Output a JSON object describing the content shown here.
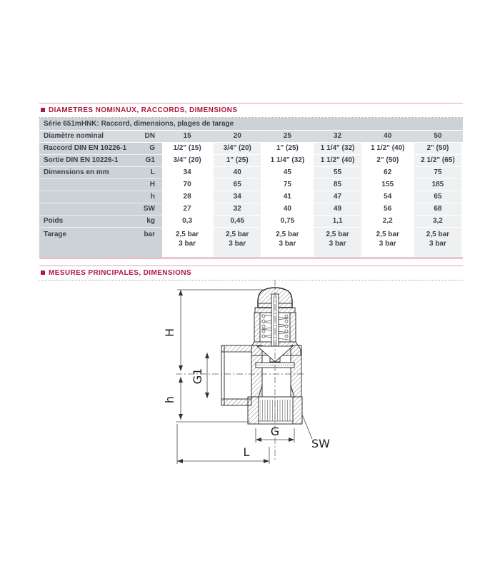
{
  "sections": [
    {
      "title": "DIAMETRES NOMINAUX, RACCORDS, DIMENSIONS"
    },
    {
      "title": "MESURES PRINCIPALES, DIMENSIONS"
    }
  ],
  "table": {
    "subtitle": "Série 651mHNK: Raccord, dimensions, plages de tarage",
    "rows": [
      {
        "header": true,
        "label": "Diamètre nominal",
        "symbol": "DN",
        "values": [
          "15",
          "20",
          "25",
          "32",
          "40",
          "50"
        ]
      },
      {
        "label": "Raccord DIN EN 10226-1",
        "symbol": "G",
        "values": [
          "1/2\" (15)",
          "3/4\" (20)",
          "1\" (25)",
          "1 1/4\" (32)",
          "1 1/2\" (40)",
          "2\" (50)"
        ]
      },
      {
        "label": "Sortie DIN EN 10226-1",
        "symbol": "G1",
        "values": [
          "3/4\" (20)",
          "1\" (25)",
          "1 1/4\" (32)",
          "1 1/2\" (40)",
          "2\" (50)",
          "2 1/2\" (65)"
        ]
      },
      {
        "label": "Dimensions en mm",
        "symbol": "L",
        "values": [
          "34",
          "40",
          "45",
          "55",
          "62",
          "75"
        ]
      },
      {
        "label": "",
        "symbol": "H",
        "values": [
          "70",
          "65",
          "75",
          "85",
          "155",
          "185"
        ]
      },
      {
        "label": "",
        "symbol": "h",
        "values": [
          "28",
          "34",
          "41",
          "47",
          "54",
          "65"
        ]
      },
      {
        "label": "",
        "symbol": "SW",
        "values": [
          "27",
          "32",
          "40",
          "49",
          "56",
          "68"
        ]
      },
      {
        "label": "Poids",
        "symbol": "kg",
        "values": [
          "0,3",
          "0,45",
          "0,75",
          "1,1",
          "2,2",
          "3,2"
        ]
      },
      {
        "label": "Tarage",
        "symbol": "bar",
        "values": [
          "2,5 bar\n3 bar",
          "2,5 bar\n3 bar",
          "2,5 bar\n3 bar",
          "2,5 bar\n3 bar",
          "2,5 bar\n3 bar",
          "2,5 bar\n3 bar"
        ]
      }
    ]
  },
  "drawing": {
    "labels": {
      "H": "H",
      "G1": "G1",
      "h": "h",
      "G": "G",
      "L": "L",
      "SW": "SW"
    }
  },
  "colors": {
    "accent": "#ae1a3f",
    "label_bg": "#ccd2d6",
    "alt_col_bg": "#eef0f1",
    "header_row_bg": "#d7dbde",
    "text": "#3a414b",
    "drawing_line": "#333333"
  }
}
